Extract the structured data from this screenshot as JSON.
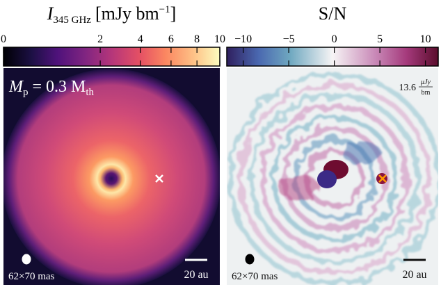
{
  "chart_data": [
    {
      "type": "heatmap",
      "colormap": "magma",
      "scale": "sqrt",
      "colorbar_label": [
        "I",
        "345 GHz",
        "[mJy bm",
        "−1",
        "]"
      ],
      "xlim": [
        0,
        10
      ],
      "xticks": [
        0,
        2,
        4,
        6,
        8,
        10
      ],
      "annotation": [
        "M",
        "p",
        " = 0.3 M",
        "th"
      ],
      "beam": "62×70 mas",
      "scalebar": "20 au",
      "marker_color": "#ffffff"
    },
    {
      "type": "heatmap",
      "colormap": "twilight",
      "scale": "linear",
      "colorbar_label": [
        "S/N"
      ],
      "xlim": [
        -11.8,
        11.4
      ],
      "xticks": [
        {
          "value": -10,
          "label": "−10"
        },
        {
          "value": -5,
          "label": "−5"
        },
        0,
        5,
        10
      ],
      "annotation": [
        "13.6",
        "μJy",
        "bm"
      ],
      "beam": "62×70 mas",
      "scalebar": "20 au",
      "marker_color": "#ff9900"
    }
  ]
}
